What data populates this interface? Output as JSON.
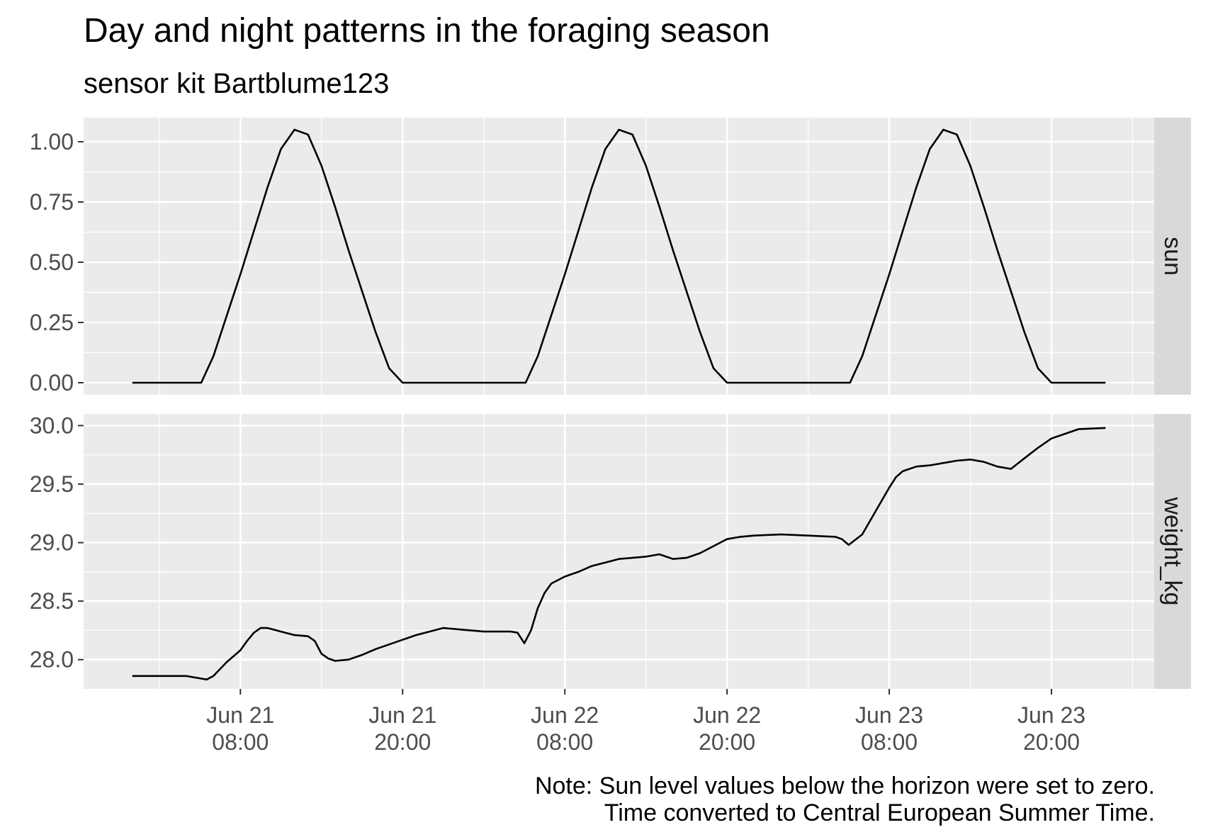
{
  "chart_data": {
    "type": "line",
    "title": "Day and night patterns in the foraging season",
    "subtitle": "sensor kit Bartblume123",
    "caption": [
      "Note: Sun level values below the horizon were set to zero.",
      "Time converted to Central European Summer Time."
    ],
    "x_unit": "hours since Jun 21 00:00 (CEST)",
    "x_ticks": [
      {
        "x": 8,
        "label": [
          "Jun 21",
          "08:00"
        ]
      },
      {
        "x": 20,
        "label": [
          "Jun 21",
          "20:00"
        ]
      },
      {
        "x": 32,
        "label": [
          "Jun 22",
          "08:00"
        ]
      },
      {
        "x": 44,
        "label": [
          "Jun 22",
          "20:00"
        ]
      },
      {
        "x": 56,
        "label": [
          "Jun 23",
          "08:00"
        ]
      },
      {
        "x": 68,
        "label": [
          "Jun 23",
          "20:00"
        ]
      }
    ],
    "xlim": [
      -3.6,
      75.6
    ],
    "panels": [
      {
        "strip": "sun",
        "ylim": [
          -0.05,
          1.1
        ],
        "y_ticks": [
          {
            "v": 0.0,
            "label": "0.00"
          },
          {
            "v": 0.25,
            "label": "0.25"
          },
          {
            "v": 0.5,
            "label": "0.50"
          },
          {
            "v": 0.75,
            "label": "0.75"
          },
          {
            "v": 1.0,
            "label": "1.00"
          }
        ],
        "series": [
          {
            "x": [
              0,
              5.1,
              6,
              7,
              8,
              9,
              10,
              11,
              12,
              13,
              14,
              15,
              16,
              17,
              18,
              19,
              20,
              21.7,
              24,
              29.1,
              30,
              31,
              32,
              33,
              34,
              35,
              36,
              37,
              38,
              39,
              40,
              41,
              42,
              43,
              44,
              45.7,
              48,
              53.1,
              54,
              55,
              56,
              57,
              58,
              59,
              60,
              61,
              62,
              63,
              64,
              65,
              66,
              67,
              68,
              69.7,
              72
            ],
            "values": [
              0,
              0,
              0.11,
              0.28,
              0.45,
              0.63,
              0.81,
              0.97,
              1.05,
              1.03,
              0.9,
              0.73,
              0.55,
              0.38,
              0.21,
              0.06,
              0.0,
              0,
              0,
              0,
              0.11,
              0.28,
              0.45,
              0.63,
              0.81,
              0.97,
              1.05,
              1.03,
              0.9,
              0.73,
              0.55,
              0.38,
              0.21,
              0.06,
              0.0,
              0,
              0,
              0,
              0.11,
              0.28,
              0.45,
              0.63,
              0.81,
              0.97,
              1.05,
              1.03,
              0.9,
              0.73,
              0.55,
              0.38,
              0.21,
              0.06,
              0.0,
              0,
              0
            ]
          }
        ]
      },
      {
        "strip": "weight_kg",
        "ylim": [
          27.75,
          30.1
        ],
        "y_ticks": [
          {
            "v": 28.0,
            "label": "28.0"
          },
          {
            "v": 28.5,
            "label": "28.5"
          },
          {
            "v": 29.0,
            "label": "29.0"
          },
          {
            "v": 29.5,
            "label": "29.5"
          },
          {
            "v": 30.0,
            "label": "30.0"
          }
        ],
        "series": [
          {
            "x": [
              0,
              1,
              2,
              3,
              4,
              4.5,
              5,
              5.5,
              6,
              6.5,
              7,
              7.5,
              8,
              8.5,
              9,
              9.5,
              10,
              11,
              12,
              13,
              13.5,
              14,
              14.5,
              15,
              16,
              17,
              18,
              19,
              20,
              21,
              22,
              23,
              24,
              25,
              26,
              28,
              28.5,
              29,
              29.5,
              30,
              30.5,
              31,
              32,
              33,
              34,
              35,
              36,
              37,
              38,
              39,
              40,
              41,
              42,
              43,
              44,
              45,
              46,
              48,
              50,
              52,
              52.5,
              53,
              54,
              55,
              56,
              56.5,
              57,
              58,
              59,
              60,
              61,
              62,
              63,
              64,
              65,
              66,
              67,
              68,
              69,
              70,
              72
            ],
            "values": [
              27.86,
              27.86,
              27.86,
              27.86,
              27.86,
              27.85,
              27.84,
              27.83,
              27.86,
              27.92,
              27.98,
              28.03,
              28.08,
              28.16,
              28.23,
              28.27,
              28.27,
              28.24,
              28.21,
              28.2,
              28.16,
              28.05,
              28.01,
              27.99,
              28.0,
              28.04,
              28.09,
              28.13,
              28.17,
              28.21,
              28.24,
              28.27,
              28.26,
              28.25,
              28.24,
              28.24,
              28.23,
              28.14,
              28.25,
              28.44,
              28.57,
              28.65,
              28.71,
              28.75,
              28.8,
              28.83,
              28.86,
              28.87,
              28.88,
              28.9,
              28.86,
              28.87,
              28.91,
              28.97,
              29.03,
              29.05,
              29.06,
              29.07,
              29.06,
              29.05,
              29.03,
              28.98,
              29.07,
              29.27,
              29.47,
              29.56,
              29.61,
              29.65,
              29.66,
              29.68,
              29.7,
              29.71,
              29.69,
              29.65,
              29.63,
              29.72,
              29.81,
              29.89,
              29.93,
              29.97,
              29.98
            ]
          }
        ]
      }
    ]
  }
}
